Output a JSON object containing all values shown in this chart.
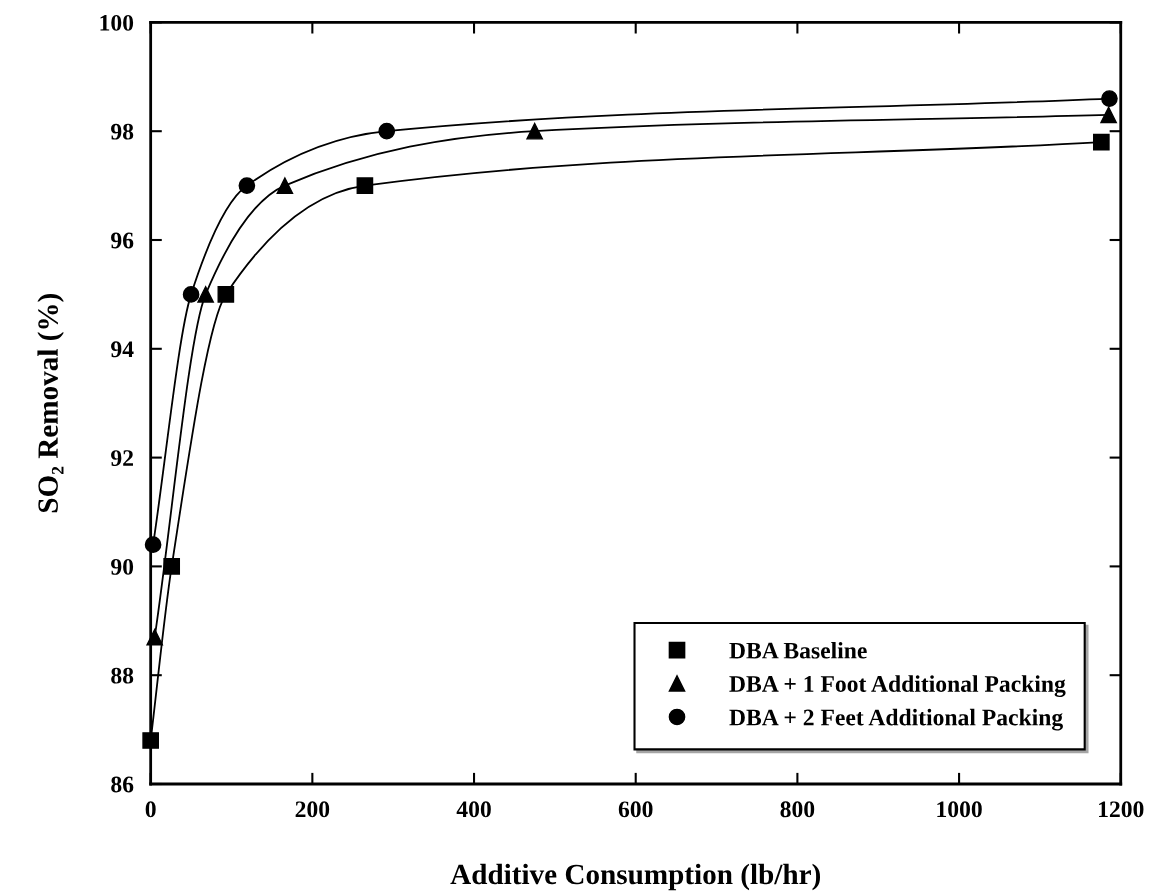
{
  "chart_data": {
    "type": "line",
    "xlabel": "Additive Consumption (lb/hr)",
    "ylabel": "SO₂ Removal (%)",
    "xlim": [
      0,
      1200
    ],
    "ylim": [
      86,
      100
    ],
    "xticks": [
      0,
      200,
      400,
      600,
      800,
      1000,
      1200
    ],
    "yticks": [
      86,
      88,
      90,
      92,
      94,
      96,
      98,
      100
    ],
    "grid": false,
    "legend": "bottom right",
    "line_style": "solid",
    "series": [
      {
        "name": "DBA Baseline",
        "color": "#000000",
        "marker": "square",
        "x": [
          0,
          26,
          93,
          265,
          1176
        ],
        "values": [
          86.8,
          90.0,
          95.0,
          97.0,
          97.8
        ]
      },
      {
        "name": "DBA + 1 Foot Additional Packing",
        "color": "#000000",
        "marker": "triangle",
        "x": [
          5,
          68,
          166,
          475,
          1185
        ],
        "values": [
          88.7,
          95.0,
          97.0,
          98.0,
          98.3
        ]
      },
      {
        "name": "DBA + 2 Feet Additional Packing",
        "color": "#000000",
        "marker": "circle",
        "x": [
          3,
          50,
          119,
          292,
          1186
        ],
        "values": [
          90.4,
          95.0,
          97.0,
          98.0,
          98.6
        ]
      }
    ]
  }
}
